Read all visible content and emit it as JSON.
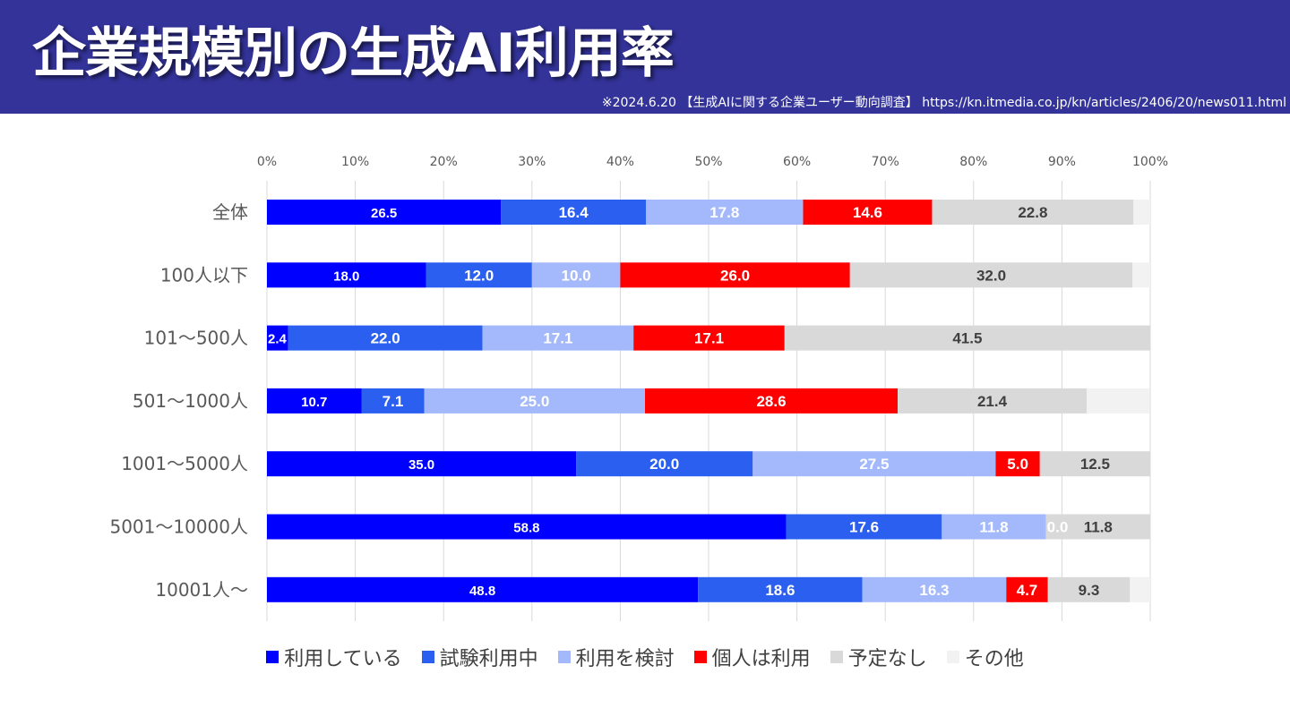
{
  "header": {
    "title": "企業規模別の生成AI利用率",
    "source": "※2024.6.20 【生成AIに関する企業ユーザー動向調査】 https://kn.itmedia.co.jp/kn/articles/2406/20/news011.html"
  },
  "colors": {
    "header_bg": "#333399",
    "series": [
      "#0000FF",
      "#2B5FF0",
      "#A3B9FB",
      "#FF0000",
      "#D9D9D9",
      "#F2F2F2"
    ],
    "label_text": [
      "#FFFFFF",
      "#FFFFFF",
      "#FFFFFF",
      "#FFFFFF",
      "#404040",
      "#404040"
    ]
  },
  "chart_data": {
    "type": "bar",
    "orientation": "horizontal",
    "stacked": true,
    "title": "",
    "xlabel": "",
    "ylabel": "",
    "xlim": [
      0,
      100
    ],
    "x_ticks": [
      "0%",
      "10%",
      "20%",
      "30%",
      "40%",
      "50%",
      "60%",
      "70%",
      "80%",
      "90%",
      "100%"
    ],
    "grid": true,
    "legend_position": "bottom",
    "categories": [
      "全体",
      "100人以下",
      "101〜500人",
      "501〜1000人",
      "1001〜5000人",
      "5001〜10000人",
      "10001人〜"
    ],
    "series": [
      {
        "name": "利用している",
        "values": [
          26.5,
          18.0,
          2.4,
          10.7,
          35.0,
          58.8,
          48.8
        ]
      },
      {
        "name": "試験利用中",
        "values": [
          16.4,
          12.0,
          22.0,
          7.1,
          20.0,
          17.6,
          18.6
        ]
      },
      {
        "name": "利用を検討",
        "values": [
          17.8,
          10.0,
          17.1,
          25.0,
          27.5,
          11.8,
          16.3
        ]
      },
      {
        "name": "個人は利用",
        "values": [
          14.6,
          26.0,
          17.1,
          28.6,
          5.0,
          0.0,
          4.7
        ]
      },
      {
        "name": "予定なし",
        "values": [
          22.8,
          32.0,
          41.5,
          21.4,
          12.5,
          11.8,
          9.3
        ]
      },
      {
        "name": "その他",
        "values": [
          1.9,
          2.0,
          0.0,
          7.1,
          0.0,
          0.0,
          2.3
        ]
      }
    ],
    "data_labels": [
      [
        "26.5",
        "16.4",
        "17.8",
        "14.6",
        "22.8",
        ""
      ],
      [
        "18.0",
        "12.0",
        "10.0",
        "26.0",
        "32.0",
        ""
      ],
      [
        "2.4",
        "22.0",
        "17.1",
        "17.1",
        "41.5",
        ""
      ],
      [
        "10.7",
        "7.1",
        "25.0",
        "28.6",
        "21.4",
        ""
      ],
      [
        "35.0",
        "20.0",
        "27.5",
        "5.0",
        "12.5",
        ""
      ],
      [
        "58.8",
        "17.6",
        "11.8",
        "0.0",
        "11.8",
        ""
      ],
      [
        "48.8",
        "18.6",
        "16.3",
        "4.7",
        "9.3",
        ""
      ]
    ]
  }
}
